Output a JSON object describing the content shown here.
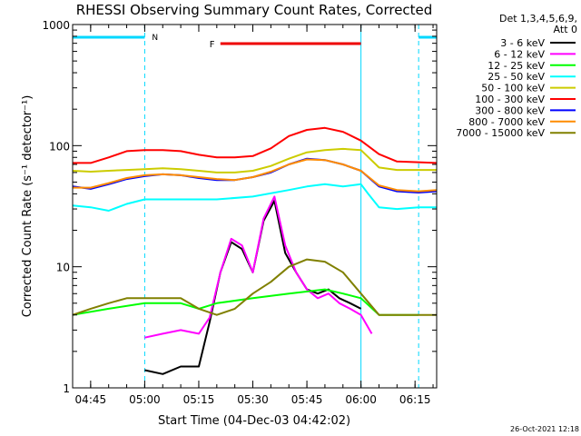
{
  "chart_data": {
    "type": "line",
    "title": "RHESSI Observing Summary Count Rates, Corrected",
    "xlabel": "Start Time (04-Dec-03 04:42:02)",
    "ylabel": "Corrected Count Rate (s⁻¹ detector⁻¹)",
    "y_scale": "log",
    "ylim": [
      1,
      1000
    ],
    "xlim": [
      "04:40",
      "06:21"
    ],
    "x_ticks": [
      "04:45",
      "05:00",
      "05:15",
      "05:30",
      "05:45",
      "06:00",
      "06:15"
    ],
    "y_ticks": [
      "1",
      "10",
      "100",
      "1000"
    ],
    "grid": false,
    "legend": {
      "placement": "right",
      "header": [
        "Det 1,3,4,5,6,9,",
        "Att 0"
      ]
    },
    "annotations": {
      "night_marker": "N",
      "flare_marker": "F",
      "timestamp": "26-Oct-2021 12:18"
    },
    "spans": {
      "night_bars": [
        [
          "04:40",
          "05:00"
        ],
        [
          "06:16",
          "06:21"
        ]
      ],
      "day_window": [
        "05:00",
        "06:16"
      ],
      "data_gap_edge": "06:00",
      "flare_bar": [
        "05:21",
        "06:00"
      ]
    },
    "series": [
      {
        "name": "3 - 6 keV",
        "color": "#000000",
        "x": [
          "05:00",
          "05:05",
          "05:10",
          "05:15",
          "05:18",
          "05:21",
          "05:24",
          "05:27",
          "05:30",
          "05:33",
          "05:36",
          "05:39",
          "05:42",
          "05:45",
          "05:48",
          "05:51",
          "05:54",
          "05:57",
          "06:00"
        ],
        "values": [
          1.4,
          1.3,
          1.5,
          1.5,
          3.5,
          9,
          16,
          14,
          9,
          24,
          35,
          13,
          9,
          6.5,
          6,
          6.5,
          5.5,
          5,
          4.5
        ]
      },
      {
        "name": "6 - 12 keV",
        "color": "#ff00ff",
        "x": [
          "05:00",
          "05:05",
          "05:10",
          "05:15",
          "05:18",
          "05:21",
          "05:24",
          "05:27",
          "05:30",
          "05:33",
          "05:36",
          "05:39",
          "05:42",
          "05:45",
          "05:48",
          "05:51",
          "05:54",
          "05:57",
          "06:00",
          "06:03"
        ],
        "values": [
          2.6,
          2.8,
          3.0,
          2.8,
          3.8,
          9,
          17,
          15,
          9,
          25,
          38,
          15,
          9,
          6.5,
          5.5,
          6,
          5,
          4.5,
          4,
          2.8
        ]
      },
      {
        "name": "12 - 25 keV",
        "color": "#00ff00",
        "x": [
          "04:40",
          "04:50",
          "05:00",
          "05:10",
          "05:15",
          "05:20",
          "05:30",
          "05:40",
          "05:50",
          "05:55",
          "06:00",
          "06:05",
          "06:10",
          "06:16"
        ],
        "values": [
          4,
          4.5,
          5,
          5,
          4.5,
          5,
          5.5,
          6,
          6.5,
          6,
          5.5,
          4,
          4,
          4
        ]
      },
      {
        "name": "25 - 50 keV",
        "color": "#00ffff",
        "x": [
          "04:40",
          "04:45",
          "04:50",
          "04:55",
          "05:00",
          "05:10",
          "05:20",
          "05:30",
          "05:40",
          "05:45",
          "05:50",
          "05:55",
          "06:00",
          "06:02",
          "06:05",
          "06:10",
          "06:16",
          "06:21"
        ],
        "values": [
          32,
          31,
          29,
          33,
          36,
          36,
          36,
          38,
          43,
          46,
          48,
          46,
          48,
          40,
          31,
          30,
          31,
          31
        ]
      },
      {
        "name": "50 - 100 keV",
        "color": "#cccc00",
        "x": [
          "04:40",
          "04:45",
          "04:50",
          "04:55",
          "05:00",
          "05:05",
          "05:10",
          "05:15",
          "05:20",
          "05:25",
          "05:30",
          "05:35",
          "05:40",
          "05:45",
          "05:50",
          "05:55",
          "06:00",
          "06:05",
          "06:10",
          "06:16",
          "06:21"
        ],
        "values": [
          62,
          61,
          62,
          63,
          64,
          65,
          64,
          62,
          60,
          60,
          62,
          68,
          78,
          88,
          92,
          94,
          92,
          66,
          63,
          63,
          63
        ]
      },
      {
        "name": "100 - 300 keV",
        "color": "#ff0000",
        "x": [
          "04:40",
          "04:45",
          "04:50",
          "04:55",
          "05:00",
          "05:05",
          "05:10",
          "05:15",
          "05:20",
          "05:25",
          "05:30",
          "05:35",
          "05:40",
          "05:45",
          "05:50",
          "05:55",
          "06:00",
          "06:05",
          "06:10",
          "06:16",
          "06:21"
        ],
        "values": [
          72,
          72,
          80,
          90,
          92,
          92,
          90,
          84,
          80,
          80,
          82,
          95,
          120,
          135,
          140,
          130,
          110,
          85,
          74,
          73,
          72
        ]
      },
      {
        "name": "300 - 800 keV",
        "color": "#0000ff",
        "x": [
          "04:40",
          "04:45",
          "04:50",
          "04:55",
          "05:00",
          "05:05",
          "05:10",
          "05:15",
          "05:20",
          "05:25",
          "05:30",
          "05:35",
          "05:40",
          "05:45",
          "05:50",
          "05:55",
          "06:00",
          "06:05",
          "06:10",
          "06:16",
          "06:21"
        ],
        "values": [
          46,
          44,
          48,
          53,
          56,
          58,
          57,
          54,
          52,
          52,
          55,
          60,
          70,
          78,
          76,
          70,
          62,
          46,
          42,
          41,
          42
        ]
      },
      {
        "name": "800 - 7000 keV",
        "color": "#ff8c00",
        "x": [
          "04:40",
          "04:45",
          "04:50",
          "04:55",
          "05:00",
          "05:05",
          "05:10",
          "05:15",
          "05:20",
          "05:25",
          "05:30",
          "05:35",
          "05:40",
          "05:45",
          "05:50",
          "05:55",
          "06:00",
          "06:05",
          "06:10",
          "06:16",
          "06:21"
        ],
        "values": [
          45,
          45,
          49,
          54,
          57,
          58,
          57,
          55,
          53,
          52,
          55,
          61,
          70,
          77,
          76,
          70,
          62,
          47,
          43,
          42,
          43
        ]
      },
      {
        "name": "7000 - 15000 keV",
        "color": "#808000",
        "x": [
          "04:40",
          "04:45",
          "04:50",
          "04:55",
          "05:00",
          "05:10",
          "05:15",
          "05:20",
          "05:25",
          "05:30",
          "05:35",
          "05:40",
          "05:45",
          "05:50",
          "05:55",
          "06:00",
          "06:05",
          "06:10",
          "06:16",
          "06:21"
        ],
        "values": [
          4,
          4.5,
          5,
          5.5,
          5.5,
          5.5,
          4.5,
          4,
          4.5,
          6,
          7.5,
          10,
          11.5,
          11,
          9,
          6,
          4,
          4,
          4,
          4
        ]
      }
    ]
  }
}
